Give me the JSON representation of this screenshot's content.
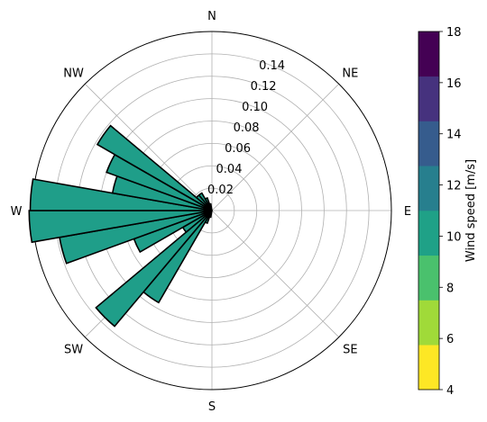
{
  "chart_data": {
    "type": "windrose",
    "directions": [
      "N",
      "NE",
      "E",
      "SE",
      "S",
      "SW",
      "W",
      "NW"
    ],
    "radial_ticks": [
      "0.02",
      "0.04",
      "0.06",
      "0.08",
      "0.10",
      "0.12",
      "0.14"
    ],
    "radial_tick_values": [
      0.02,
      0.04,
      0.06,
      0.08,
      0.1,
      0.12,
      0.14
    ],
    "rmax": 0.16,
    "bin_width_deg": 10,
    "bins": [
      {
        "angle_deg": 195,
        "value": 0.006
      },
      {
        "angle_deg": 205,
        "value": 0.012
      },
      {
        "angle_deg": 215,
        "value": 0.095
      },
      {
        "angle_deg": 225,
        "value": 0.135
      },
      {
        "angle_deg": 235,
        "value": 0.03
      },
      {
        "angle_deg": 245,
        "value": 0.074
      },
      {
        "angle_deg": 255,
        "value": 0.138
      },
      {
        "angle_deg": 265,
        "value": 0.163
      },
      {
        "angle_deg": 275,
        "value": 0.162
      },
      {
        "angle_deg": 285,
        "value": 0.09
      },
      {
        "angle_deg": 295,
        "value": 0.1
      },
      {
        "angle_deg": 305,
        "value": 0.118
      },
      {
        "angle_deg": 315,
        "value": 0.018
      },
      {
        "angle_deg": 325,
        "value": 0.018
      },
      {
        "angle_deg": 335,
        "value": 0.012
      },
      {
        "angle_deg": 345,
        "value": 0.006
      }
    ],
    "bar_color": "#1f9e89",
    "colorbar": {
      "label": "Wind speed [m/s]",
      "ticks": [
        "4",
        "6",
        "8",
        "10",
        "12",
        "14",
        "16",
        "18"
      ],
      "tick_values": [
        4,
        6,
        8,
        10,
        12,
        14,
        16,
        18
      ],
      "min": 4,
      "max": 18,
      "colors": [
        "#fde725",
        "#a0da39",
        "#4ac16d",
        "#1fa187",
        "#277f8e",
        "#365c8d",
        "#46327e",
        "#440154"
      ]
    }
  }
}
